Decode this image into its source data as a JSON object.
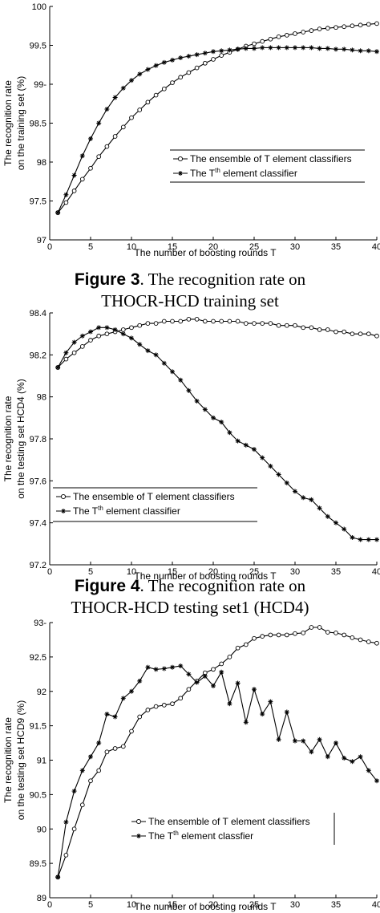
{
  "chart_data": [
    {
      "type": "line",
      "xlabel": "The number of boosting rounds T",
      "ylabel_lines": [
        "The recognition rate",
        "on the training set (%)"
      ],
      "xlim": [
        0,
        40
      ],
      "ylim": [
        97,
        100
      ],
      "xticks": [
        0,
        5,
        10,
        15,
        20,
        25,
        30,
        35,
        40
      ],
      "yticks": [
        97,
        97.5,
        98,
        98.5,
        99,
        99.5,
        100
      ],
      "ytick_labels": [
        "97",
        "97.5",
        "98",
        "98.5",
        "99-",
        "99.5",
        "100"
      ],
      "legend_placement": "center-right",
      "series": [
        {
          "name": "The ensemble of T element classifiers",
          "marker": "circle",
          "x": [
            1,
            2,
            3,
            4,
            5,
            6,
            7,
            8,
            9,
            10,
            11,
            12,
            13,
            14,
            15,
            16,
            17,
            18,
            19,
            20,
            21,
            22,
            23,
            24,
            25,
            26,
            27,
            28,
            29,
            30,
            31,
            32,
            33,
            34,
            35,
            36,
            37,
            38,
            39,
            40
          ],
          "y": [
            97.35,
            97.48,
            97.63,
            97.78,
            97.92,
            98.07,
            98.2,
            98.33,
            98.45,
            98.57,
            98.67,
            98.77,
            98.86,
            98.94,
            99.02,
            99.09,
            99.15,
            99.21,
            99.27,
            99.32,
            99.37,
            99.41,
            99.45,
            99.49,
            99.52,
            99.55,
            99.58,
            99.61,
            99.63,
            99.65,
            99.67,
            99.69,
            99.71,
            99.72,
            99.73,
            99.74,
            99.75,
            99.76,
            99.77,
            99.78
          ]
        },
        {
          "name_parts": [
            "The T",
            "th",
            " element classifier"
          ],
          "marker": "star",
          "x": [
            1,
            2,
            3,
            4,
            5,
            6,
            7,
            8,
            9,
            10,
            11,
            12,
            13,
            14,
            15,
            16,
            17,
            18,
            19,
            20,
            21,
            22,
            23,
            24,
            25,
            26,
            27,
            28,
            29,
            30,
            31,
            32,
            33,
            34,
            35,
            36,
            37,
            38,
            39,
            40
          ],
          "y": [
            97.35,
            97.58,
            97.83,
            98.08,
            98.3,
            98.5,
            98.68,
            98.83,
            98.95,
            99.05,
            99.13,
            99.19,
            99.24,
            99.28,
            99.31,
            99.34,
            99.36,
            99.38,
            99.4,
            99.42,
            99.43,
            99.44,
            99.45,
            99.46,
            99.46,
            99.47,
            99.47,
            99.47,
            99.47,
            99.47,
            99.47,
            99.47,
            99.46,
            99.46,
            99.45,
            99.45,
            99.44,
            99.43,
            99.43,
            99.42
          ]
        }
      ]
    },
    {
      "type": "line",
      "xlabel": "The number of boosting rounds T",
      "ylabel_lines": [
        "The recognition rate",
        "on the testing set HCD4 (%)"
      ],
      "xlim": [
        0,
        40
      ],
      "ylim": [
        97.2,
        98.4
      ],
      "xticks": [
        0,
        5,
        10,
        15,
        20,
        25,
        30,
        35,
        40
      ],
      "yticks": [
        97.2,
        97.4,
        97.6,
        97.8,
        98,
        98.2,
        98.4
      ],
      "ytick_labels": [
        "97.2",
        "97.4",
        "97.6",
        "97.8",
        "98",
        "98.2",
        "98.4"
      ],
      "legend_placement": "center-left",
      "series": [
        {
          "name": "The ensemble of T element classifiers",
          "marker": "circle",
          "x": [
            1,
            2,
            3,
            4,
            5,
            6,
            7,
            8,
            9,
            10,
            11,
            12,
            13,
            14,
            15,
            16,
            17,
            18,
            19,
            20,
            21,
            22,
            23,
            24,
            25,
            26,
            27,
            28,
            29,
            30,
            31,
            32,
            33,
            34,
            35,
            36,
            37,
            38,
            39,
            40
          ],
          "y": [
            98.14,
            98.18,
            98.21,
            98.24,
            98.27,
            98.29,
            98.3,
            98.31,
            98.32,
            98.33,
            98.34,
            98.35,
            98.35,
            98.36,
            98.36,
            98.36,
            98.37,
            98.37,
            98.36,
            98.36,
            98.36,
            98.36,
            98.36,
            98.35,
            98.35,
            98.35,
            98.35,
            98.34,
            98.34,
            98.34,
            98.33,
            98.33,
            98.32,
            98.32,
            98.31,
            98.31,
            98.3,
            98.3,
            98.3,
            98.29
          ]
        },
        {
          "name_parts": [
            "The T",
            "th",
            " element classifier"
          ],
          "marker": "star",
          "x": [
            1,
            2,
            3,
            4,
            5,
            6,
            7,
            8,
            9,
            10,
            11,
            12,
            13,
            14,
            15,
            16,
            17,
            18,
            19,
            20,
            21,
            22,
            23,
            24,
            25,
            26,
            27,
            28,
            29,
            30,
            31,
            32,
            33,
            34,
            35,
            36,
            37,
            38,
            39,
            40
          ],
          "y": [
            98.14,
            98.21,
            98.26,
            98.29,
            98.31,
            98.33,
            98.33,
            98.32,
            98.3,
            98.28,
            98.25,
            98.22,
            98.2,
            98.16,
            98.12,
            98.08,
            98.03,
            97.98,
            97.94,
            97.9,
            97.88,
            97.83,
            97.79,
            97.77,
            97.75,
            97.71,
            97.67,
            97.63,
            97.59,
            97.55,
            97.52,
            97.51,
            97.47,
            97.43,
            97.4,
            97.37,
            97.33,
            97.32,
            97.32,
            97.32
          ]
        }
      ]
    },
    {
      "type": "line",
      "xlabel": "The number of boosting rounds T",
      "ylabel_lines": [
        "The recognition rate",
        "on the testing set HCD9 (%)"
      ],
      "xlim": [
        0,
        40
      ],
      "ylim": [
        89,
        93
      ],
      "xticks": [
        0,
        5,
        10,
        15,
        20,
        25,
        30,
        35,
        40
      ],
      "yticks": [
        89,
        89.5,
        90,
        90.5,
        91,
        91.5,
        92,
        92.5,
        93
      ],
      "ytick_labels": [
        "89",
        "89.5",
        "90",
        "90.5",
        "91",
        "91.5",
        "92",
        "92.5",
        "93-"
      ],
      "legend_placement": "center-right",
      "series": [
        {
          "name": "The ensemble of T element classifiers",
          "marker": "circle",
          "x": [
            1,
            2,
            3,
            4,
            5,
            6,
            7,
            8,
            9,
            10,
            11,
            12,
            13,
            14,
            15,
            16,
            17,
            18,
            19,
            20,
            21,
            22,
            23,
            24,
            25,
            26,
            27,
            28,
            29,
            30,
            31,
            32,
            33,
            34,
            35,
            36,
            37,
            38,
            39,
            40
          ],
          "y": [
            89.3,
            89.62,
            90.0,
            90.35,
            90.7,
            90.85,
            91.12,
            91.17,
            91.2,
            91.42,
            91.63,
            91.73,
            91.78,
            91.8,
            91.82,
            91.9,
            92.03,
            92.15,
            92.27,
            92.32,
            92.4,
            92.5,
            92.63,
            92.68,
            92.77,
            92.8,
            92.82,
            92.82,
            92.82,
            92.84,
            92.85,
            92.93,
            92.93,
            92.86,
            92.85,
            92.82,
            92.78,
            92.75,
            92.72,
            92.7
          ]
        },
        {
          "name": "The T",
          "name_suffix": "th",
          "name_tail": " element classfier",
          "marker": "star",
          "x": [
            1,
            2,
            3,
            4,
            5,
            6,
            7,
            8,
            9,
            10,
            11,
            12,
            13,
            14,
            15,
            16,
            17,
            18,
            19,
            20,
            21,
            22,
            23,
            24,
            25,
            26,
            27,
            28,
            29,
            30,
            31,
            32,
            33,
            34,
            35,
            36,
            37,
            38,
            39,
            40
          ],
          "y": [
            89.3,
            90.1,
            90.55,
            90.85,
            91.05,
            91.25,
            91.67,
            91.63,
            91.9,
            92.0,
            92.15,
            92.35,
            92.32,
            92.33,
            92.35,
            92.37,
            92.25,
            92.13,
            92.22,
            92.08,
            92.28,
            91.82,
            92.12,
            91.55,
            92.03,
            91.67,
            91.85,
            91.3,
            91.7,
            91.28,
            91.28,
            91.12,
            91.3,
            91.05,
            91.25,
            91.03,
            90.98,
            91.05,
            90.85,
            90.7
          ]
        }
      ]
    }
  ],
  "captions": [
    {
      "label": "Figure 3",
      "text_line1": ". The recognition rate on",
      "text_line2": "THOCR-HCD training set"
    },
    {
      "label": "Figure 4",
      "text_line1": ". The recognition rate on",
      "text_line2": "THOCR-HCD testing set1 (HCD4)"
    }
  ]
}
